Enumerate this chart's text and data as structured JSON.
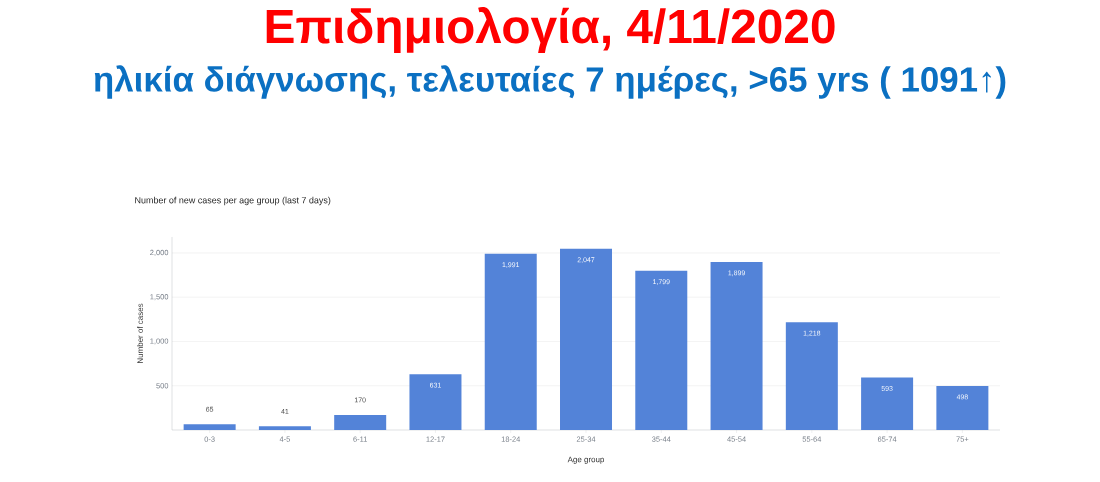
{
  "chart_data": {
    "type": "bar",
    "title": "Επιδημιολογία,  4/11/2020",
    "subtitle": "ηλικία διάγνωσης, τελευταίες 7 ημέρες, >65 yrs ( 1091↑)",
    "annotations": [
      "Number of new cases per age group (last 7 days)"
    ],
    "xlabel": "Age group",
    "ylabel": "Number of cases",
    "categories": [
      "0-3",
      "4-5",
      "6-11",
      "12-17",
      "18-24",
      "25-34",
      "35-44",
      "45-54",
      "55-64",
      "65-74",
      "75+"
    ],
    "values": [
      65,
      41,
      170,
      631,
      1991,
      2047,
      1799,
      1899,
      1218,
      593,
      498
    ],
    "value_labels": [
      "65",
      "41",
      "170",
      "631",
      "1,991",
      "2,047",
      "1,799",
      "1,899",
      "1,218",
      "593",
      "498"
    ],
    "color": "#5383d8",
    "ylim": [
      0,
      2180
    ],
    "yticks": [
      {
        "value": 500,
        "label": "500"
      },
      {
        "value": 1000,
        "label": "1,000"
      },
      {
        "value": 1500,
        "label": "1,500"
      },
      {
        "value": 2000,
        "label": "2,000"
      }
    ],
    "grid": "y"
  }
}
